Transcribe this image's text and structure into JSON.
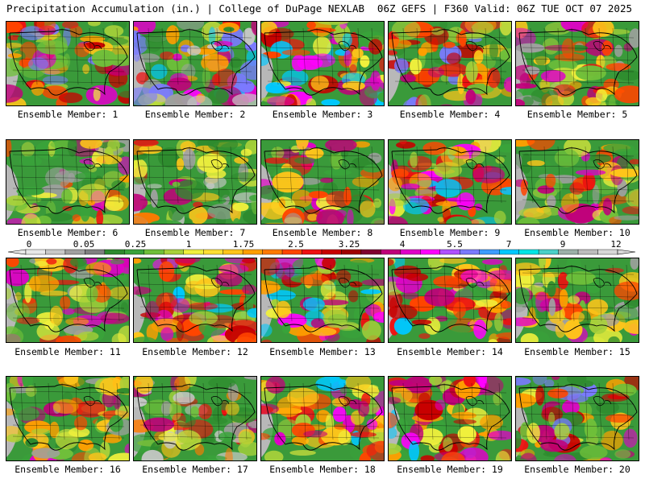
{
  "header": {
    "left": "Precipitation Accumulation (in.) | College of DuPage NEXLAB",
    "right": "06Z GEFS | F360 Valid: 06Z TUE OCT 07 2025"
  },
  "members": [
    {
      "label": "Ensemble Member: 1",
      "intensity": "moderate-high"
    },
    {
      "label": "Ensemble Member: 2",
      "intensity": "high-west"
    },
    {
      "label": "Ensemble Member: 3",
      "intensity": "high"
    },
    {
      "label": "Ensemble Member: 4",
      "intensity": "moderate-high"
    },
    {
      "label": "Ensemble Member: 5",
      "intensity": "moderate"
    },
    {
      "label": "Ensemble Member: 6",
      "intensity": "moderate"
    },
    {
      "label": "Ensemble Member: 7",
      "intensity": "low"
    },
    {
      "label": "Ensemble Member: 8",
      "intensity": "moderate"
    },
    {
      "label": "Ensemble Member: 9",
      "intensity": "high"
    },
    {
      "label": "Ensemble Member: 10",
      "intensity": "moderate"
    },
    {
      "label": "Ensemble Member: 11",
      "intensity": "moderate"
    },
    {
      "label": "Ensemble Member: 12",
      "intensity": "high"
    },
    {
      "label": "Ensemble Member: 13",
      "intensity": "high"
    },
    {
      "label": "Ensemble Member: 14",
      "intensity": "high"
    },
    {
      "label": "Ensemble Member: 15",
      "intensity": "moderate"
    },
    {
      "label": "Ensemble Member: 16",
      "intensity": "moderate"
    },
    {
      "label": "Ensemble Member: 17",
      "intensity": "low"
    },
    {
      "label": "Ensemble Member: 18",
      "intensity": "high"
    },
    {
      "label": "Ensemble Member: 19",
      "intensity": "high"
    },
    {
      "label": "Ensemble Member: 20",
      "intensity": "moderate-high"
    }
  ],
  "colorbar": {
    "ticks": [
      "0",
      "0.05",
      "0.25",
      "1",
      "1.75",
      "2.5",
      "3.25",
      "4",
      "5.5",
      "7",
      "9",
      "12"
    ],
    "colors": [
      "#e8e8e8",
      "#c8c8c8",
      "#a0a0a0",
      "#808080",
      "#2e8b2e",
      "#39a33a",
      "#6fbf3a",
      "#a8d13a",
      "#f0f03c",
      "#ffe033",
      "#ffc51a",
      "#ff9f00",
      "#ff7a00",
      "#ff4500",
      "#ee1111",
      "#c80000",
      "#a00000",
      "#800030",
      "#c0007a",
      "#e000c8",
      "#ff00ff",
      "#b050ff",
      "#7a7aff",
      "#3c9cff",
      "#00c8ff",
      "#00e5e5",
      "#4ad0c8",
      "#9cb0a8",
      "#bdbdbd",
      "#d8d8d8"
    ]
  }
}
